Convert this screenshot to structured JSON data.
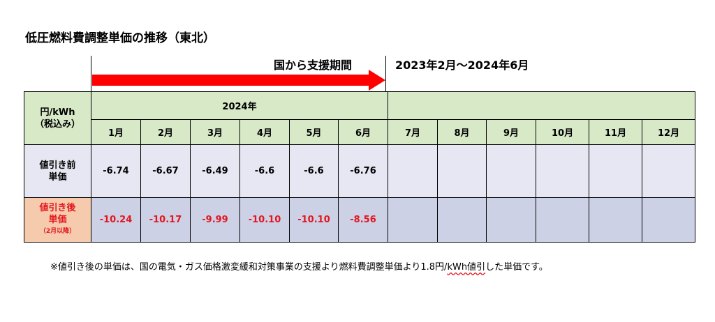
{
  "title": "低圧燃料費調整単価の推移（東北）",
  "support_label": "国から支援期間",
  "period_label": "2023年2月～2024年6月",
  "colors": {
    "arrow": "#ff0000",
    "header_bg": "#d8e9c8",
    "before_bg": "#e7e7f3",
    "after_bg": "#cdd1e6",
    "after_label_bg": "#f6caac",
    "after_text": "#e3161f"
  },
  "table": {
    "unit_line1": "円/kWh",
    "unit_line2": "（税込み）",
    "year": "2024年",
    "months": [
      "1月",
      "2月",
      "3月",
      "4月",
      "5月",
      "6月",
      "7月",
      "8月",
      "9月",
      "10月",
      "11月",
      "12月"
    ],
    "before_label_line1": "値引き前",
    "before_label_line2": "単価",
    "after_label_line1": "値引き後",
    "after_label_line2": "単価",
    "after_label_note": "（2月以降）",
    "before_values": [
      "-6.74",
      "-6.67",
      "-6.49",
      "-6.6",
      "-6.6",
      "-6.76",
      "",
      "",
      "",
      "",
      "",
      ""
    ],
    "after_values": [
      "-10.24",
      "-10.17",
      "-9.99",
      "-10.10",
      "-10.10",
      "-8.56",
      "",
      "",
      "",
      "",
      "",
      ""
    ]
  },
  "footnote_prefix": "※値引き後の単価は、国の電気・ガス価格激変緩和対策事業の支援より燃料費調整単価より1.8円/",
  "footnote_wavy": "kWh値引",
  "footnote_suffix": "した単価です。"
}
